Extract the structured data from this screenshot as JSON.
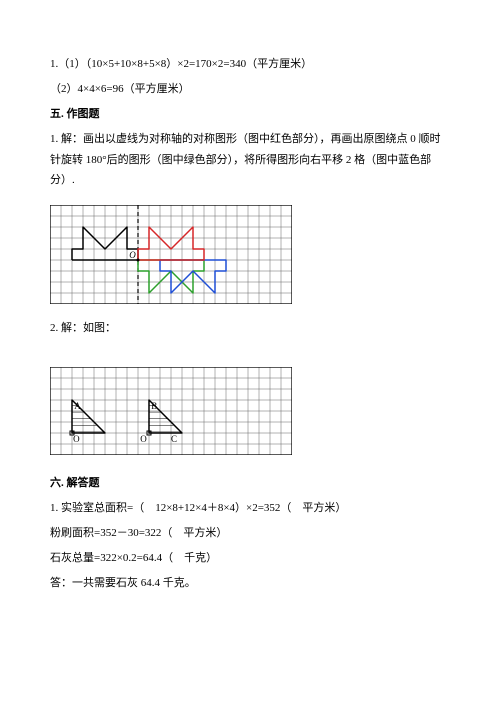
{
  "q1": {
    "part1": "1.（1）（10×5+10×8+5×8）×2=170×2=340（平方厘米）",
    "part2": "（2）4×4×6=96（平方厘米）"
  },
  "section5": {
    "header": "五. 作图题",
    "problem1": "1. 解：画出以虚线为对称轴的对称图形（图中红色部分），再画出原图绕点 0 顺时针旋转 180°后的图形（图中绿色部分），将所得图形向右平移 2 格（图中蓝色部分）.",
    "problem2": "2. 解：如图："
  },
  "section6": {
    "header": "六. 解答题",
    "l1": "1. 实验室总面积=（　12×8+12×4＋8×4）×2=352（　平方米）",
    "l2": "粉刷面积=352－30=322（　平方米）",
    "l3": "石灰总量=322×0.2=64.4（　千克）",
    "l4": "答：一共需要石灰 64.4 千克。"
  },
  "figure1": {
    "cell": 11,
    "cols": 22,
    "rows": 9,
    "grid_color": "#666666",
    "border_color": "#000000",
    "dash_color": "#000000",
    "colors": {
      "black": "#000000",
      "red": "#d62728",
      "green": "#2ca02c",
      "blue": "#1f4fd6"
    },
    "label_O": "O",
    "shapes": {
      "black_house": [
        [
          2,
          5
        ],
        [
          2,
          4
        ],
        [
          3,
          4
        ],
        [
          3,
          2
        ],
        [
          5,
          4
        ],
        [
          7,
          2
        ],
        [
          7,
          4
        ],
        [
          8,
          4
        ],
        [
          8,
          5
        ],
        [
          2,
          5
        ]
      ],
      "red_house": [
        [
          8,
          5
        ],
        [
          8,
          4
        ],
        [
          9,
          4
        ],
        [
          9,
          2
        ],
        [
          11,
          4
        ],
        [
          13,
          2
        ],
        [
          13,
          4
        ],
        [
          14,
          4
        ],
        [
          14,
          5
        ],
        [
          8,
          5
        ]
      ],
      "green_house": [
        [
          8,
          5
        ],
        [
          8,
          6
        ],
        [
          9,
          6
        ],
        [
          9,
          8
        ],
        [
          11,
          6
        ],
        [
          13,
          8
        ],
        [
          13,
          6
        ],
        [
          14,
          6
        ],
        [
          14,
          5
        ],
        [
          8,
          5
        ]
      ],
      "blue_house": [
        [
          10,
          5
        ],
        [
          10,
          6
        ],
        [
          11,
          6
        ],
        [
          11,
          8
        ],
        [
          13,
          6
        ],
        [
          15,
          8
        ],
        [
          15,
          6
        ],
        [
          16,
          6
        ],
        [
          16,
          5
        ],
        [
          10,
          5
        ]
      ]
    }
  },
  "figure2": {
    "cell": 11,
    "cols": 22,
    "rows": 8,
    "grid_color": "#666666",
    "border_color": "#000000",
    "color": "#000000",
    "labels": {
      "A": "A",
      "B": "B",
      "O": "O",
      "C": "C"
    },
    "triangles": {
      "tri1": [
        [
          2,
          6
        ],
        [
          2,
          3
        ],
        [
          5,
          6
        ]
      ],
      "tri2": [
        [
          9,
          6
        ],
        [
          9,
          3
        ],
        [
          12,
          6
        ]
      ]
    },
    "label_pos": {
      "A": [
        2.2,
        3.8
      ],
      "O_left": [
        2.1,
        6.8
      ],
      "B": [
        9.2,
        3.8
      ],
      "O_right": [
        8.2,
        6.8
      ],
      "C": [
        11.0,
        6.8
      ]
    }
  }
}
